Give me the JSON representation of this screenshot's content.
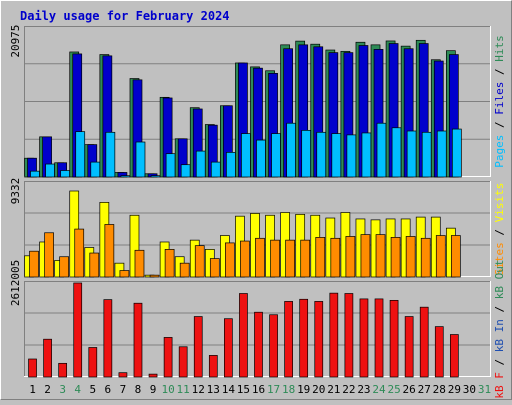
{
  "title": "Daily usage for February 2024",
  "colors": {
    "background": "#c0c0c0",
    "plot_bg": "#c0c0c0",
    "hits": "#2e8b57",
    "files": "#0000cc",
    "pages": "#00bfff",
    "visits": "#ffff00",
    "sites": "#ff8c00",
    "kbf": "#ee1111",
    "kbin": "#1f4fb0",
    "kbout": "#2e8b57",
    "title": "#0000cc"
  },
  "chart_data": [
    {
      "type": "bar",
      "name": "hits-files-pages",
      "ymax_label": "20975",
      "ymax": 23000,
      "legend": [
        {
          "text": "Pages",
          "color": "#00bfff"
        },
        {
          "text": " / ",
          "color": "#000000"
        },
        {
          "text": "Files",
          "color": "#0000cc"
        },
        {
          "text": " / ",
          "color": "#000000"
        },
        {
          "text": "Hits",
          "color": "#2e8b57"
        }
      ],
      "categories": [
        "1",
        "2",
        "3",
        "4",
        "5",
        "6",
        "7",
        "8",
        "9",
        "10",
        "11",
        "12",
        "13",
        "14",
        "15",
        "16",
        "17",
        "18",
        "19",
        "20",
        "21",
        "22",
        "23",
        "24",
        "25",
        "26",
        "27",
        "28",
        "29",
        "30",
        "31"
      ],
      "series": [
        {
          "name": "Hits",
          "color": "#2e8b57",
          "values": [
            2900,
            6200,
            2200,
            19300,
            5000,
            18900,
            700,
            15200,
            500,
            12300,
            5900,
            10700,
            8100,
            11000,
            17600,
            17000,
            16400,
            20400,
            20975,
            20500,
            19600,
            19400,
            20800,
            20400,
            21000,
            20200,
            21100,
            18100,
            19500,
            0,
            0
          ]
        },
        {
          "name": "Files",
          "color": "#0000cc",
          "values": [
            2900,
            6200,
            2200,
            19000,
            5000,
            18700,
            700,
            15000,
            500,
            12200,
            5900,
            10500,
            8000,
            11000,
            17600,
            16800,
            16000,
            19800,
            20400,
            20100,
            19200,
            19200,
            20300,
            19700,
            20600,
            19800,
            20600,
            17900,
            18900,
            0,
            0
          ]
        },
        {
          "name": "Pages",
          "color": "#00bfff",
          "values": [
            900,
            2000,
            1000,
            7000,
            2300,
            6900,
            200,
            5400,
            200,
            3600,
            1900,
            4000,
            2300,
            3800,
            6700,
            5700,
            6700,
            8300,
            7200,
            6900,
            6700,
            6500,
            6800,
            8300,
            7600,
            7100,
            6900,
            7100,
            7400,
            0,
            0
          ]
        }
      ]
    },
    {
      "type": "bar",
      "name": "visits-sites",
      "ymax_label": "9332",
      "ymax": 10200,
      "legend": [
        {
          "text": "Sites",
          "color": "#ff8c00"
        },
        {
          "text": " / ",
          "color": "#000000"
        },
        {
          "text": "Visits",
          "color": "#ffff00"
        }
      ],
      "series": [
        {
          "name": "Visits",
          "color": "#ffff00",
          "values": [
            2300,
            3800,
            1800,
            9332,
            3200,
            8100,
            1500,
            6700,
            200,
            3800,
            2200,
            4000,
            3000,
            4500,
            6600,
            6900,
            6700,
            7000,
            6800,
            6700,
            6400,
            7000,
            6300,
            6200,
            6300,
            6300,
            6500,
            6500,
            5300,
            0,
            0
          ]
        },
        {
          "name": "Sites",
          "color": "#ff8c00",
          "values": [
            2800,
            4800,
            2200,
            5200,
            2600,
            5700,
            700,
            2900,
            200,
            3000,
            1500,
            3400,
            2000,
            3700,
            3900,
            4200,
            4000,
            4000,
            4000,
            4300,
            4200,
            4400,
            4600,
            4600,
            4300,
            4400,
            4200,
            4500,
            4500,
            0,
            0
          ]
        }
      ]
    },
    {
      "type": "bar",
      "name": "kbytes",
      "ymax_label": "2612005",
      "ymax": 2612005,
      "legend": [
        {
          "text": "kB F",
          "color": "#ee1111"
        },
        {
          "text": " / ",
          "color": "#000000"
        },
        {
          "text": "kB In",
          "color": "#1f4fb0"
        },
        {
          "text": " / ",
          "color": "#000000"
        },
        {
          "text": "kB Out",
          "color": "#2e8b57"
        }
      ],
      "series": [
        {
          "name": "kB F",
          "color": "#ee1111",
          "values": [
            500000,
            1050000,
            380000,
            2612005,
            820000,
            2150000,
            120000,
            2050000,
            80000,
            1100000,
            840000,
            1680000,
            600000,
            1620000,
            2320000,
            1800000,
            1730000,
            2100000,
            2160000,
            2100000,
            2330000,
            2320000,
            2170000,
            2170000,
            2130000,
            1680000,
            1940000,
            1400000,
            1180000,
            0,
            0
          ]
        }
      ]
    }
  ],
  "x_labels": [
    {
      "text": "1",
      "color": "#000000"
    },
    {
      "text": "2",
      "color": "#000000"
    },
    {
      "text": "3",
      "color": "#2e8b57"
    },
    {
      "text": "4",
      "color": "#2e8b57"
    },
    {
      "text": "5",
      "color": "#000000"
    },
    {
      "text": "6",
      "color": "#000000"
    },
    {
      "text": "7",
      "color": "#000000"
    },
    {
      "text": "8",
      "color": "#000000"
    },
    {
      "text": "9",
      "color": "#000000"
    },
    {
      "text": "10",
      "color": "#2e8b57"
    },
    {
      "text": "11",
      "color": "#2e8b57"
    },
    {
      "text": "12",
      "color": "#000000"
    },
    {
      "text": "13",
      "color": "#000000"
    },
    {
      "text": "14",
      "color": "#000000"
    },
    {
      "text": "15",
      "color": "#000000"
    },
    {
      "text": "16",
      "color": "#000000"
    },
    {
      "text": "17",
      "color": "#2e8b57"
    },
    {
      "text": "18",
      "color": "#2e8b57"
    },
    {
      "text": "19",
      "color": "#000000"
    },
    {
      "text": "20",
      "color": "#000000"
    },
    {
      "text": "21",
      "color": "#000000"
    },
    {
      "text": "22",
      "color": "#000000"
    },
    {
      "text": "23",
      "color": "#000000"
    },
    {
      "text": "24",
      "color": "#2e8b57"
    },
    {
      "text": "25",
      "color": "#2e8b57"
    },
    {
      "text": "26",
      "color": "#000000"
    },
    {
      "text": "27",
      "color": "#000000"
    },
    {
      "text": "28",
      "color": "#000000"
    },
    {
      "text": "29",
      "color": "#000000"
    },
    {
      "text": "30",
      "color": "#000000"
    },
    {
      "text": "31",
      "color": "#2e8b57"
    }
  ]
}
